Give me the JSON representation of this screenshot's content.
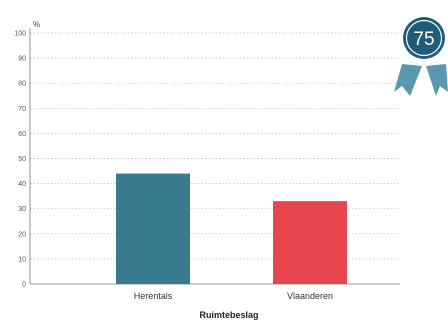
{
  "chart_data": {
    "type": "bar",
    "categories": [
      "Herentals",
      "Vlaanderen"
    ],
    "values": [
      44,
      33
    ],
    "colors": [
      "#3a7a8e",
      "#e8454e"
    ],
    "ylim": [
      0,
      100
    ],
    "yticks": [
      "0",
      "10",
      "20",
      "30",
      "40",
      "50",
      "60",
      "70",
      "80",
      "90",
      "100"
    ],
    "yunit": "%",
    "xlabel": "Ruimtebeslag",
    "grid": "dotted horizontal"
  },
  "badge": {
    "value": "75",
    "icon": "ribbon-badge-icon",
    "circle_color": "#1f5c7a",
    "ribbon_color": "#5a98b0"
  }
}
